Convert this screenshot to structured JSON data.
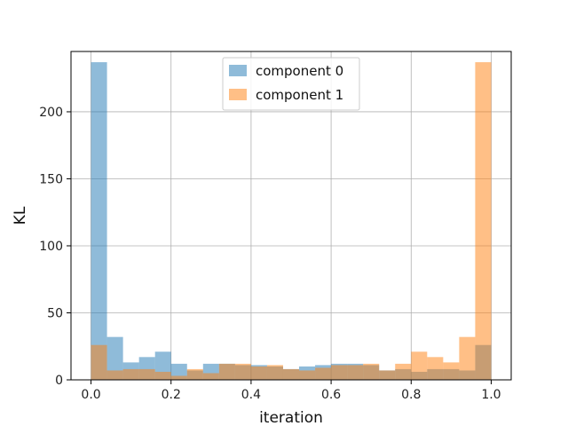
{
  "chart_data": {
    "type": "histogram",
    "xlabel": "iteration",
    "ylabel": "KL",
    "xlim": [
      -0.05,
      1.05
    ],
    "ylim": [
      0,
      245
    ],
    "xticks": [
      0.0,
      0.2,
      0.4,
      0.6,
      0.8,
      1.0
    ],
    "xtick_labels": [
      "0.0",
      "0.2",
      "0.4",
      "0.6",
      "0.8",
      "1.0"
    ],
    "yticks": [
      0,
      50,
      100,
      150,
      200
    ],
    "ytick_labels": [
      "0",
      "50",
      "100",
      "150",
      "200"
    ],
    "grid": true,
    "legend_position": "top-center",
    "bin_edges": [
      0.0,
      0.04,
      0.08,
      0.12,
      0.16,
      0.2,
      0.24,
      0.28,
      0.32,
      0.36,
      0.4,
      0.44,
      0.48,
      0.52,
      0.56,
      0.6,
      0.64,
      0.68,
      0.72,
      0.76,
      0.8,
      0.84,
      0.88,
      0.92,
      0.96,
      1.0
    ],
    "series": [
      {
        "name": "component 0",
        "color": "#1f77b4",
        "values": [
          237,
          32,
          13,
          17,
          21,
          12,
          7,
          12,
          12,
          11,
          11,
          10,
          8,
          10,
          11,
          12,
          12,
          11,
          7,
          8,
          6,
          8,
          8,
          7,
          26
        ]
      },
      {
        "name": "component 1",
        "color": "#ff7f0e",
        "values": [
          26,
          7,
          8,
          8,
          6,
          3,
          8,
          5,
          12,
          12,
          10,
          11,
          8,
          7,
          9,
          11,
          11,
          12,
          7,
          12,
          21,
          17,
          13,
          32,
          237
        ]
      }
    ]
  }
}
